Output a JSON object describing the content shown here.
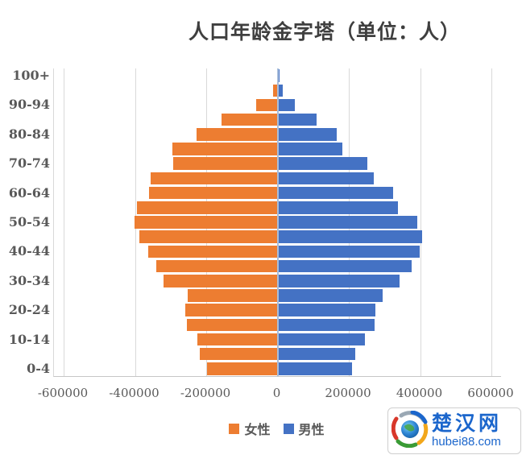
{
  "title": "人口年龄金字塔（单位：人）",
  "colors": {
    "female": "#ED7D31",
    "male": "#4472C4",
    "gridline": "#D9D9D9",
    "zero_axis": "#A9BEDB",
    "axis_text": "#595959",
    "title_text": "#3F3F3F",
    "logo_blue": "#1B66CC"
  },
  "chart_data": {
    "type": "bar",
    "subtype": "population-pyramid-horizontal",
    "title": "人口年龄金字塔（单位：人）",
    "categories_top_to_bottom": [
      "100+",
      "95-99",
      "90-94",
      "85-89",
      "80-84",
      "75-79",
      "70-74",
      "65-69",
      "60-64",
      "55-59",
      "50-54",
      "45-49",
      "40-44",
      "35-39",
      "30-34",
      "25-29",
      "20-24",
      "15-19",
      "10-14",
      "5-9",
      "0-4"
    ],
    "y_tick_labels_shown": [
      "100+",
      "90-94",
      "80-84",
      "70-74",
      "60-64",
      "50-54",
      "40-44",
      "30-34",
      "20-24",
      "10-14",
      "0-4"
    ],
    "series": [
      {
        "name": "女性",
        "side": "left",
        "color": "#ED7D31",
        "values": [
          -2000,
          -12000,
          -61000,
          -156000,
          -226000,
          -295000,
          -292000,
          -356000,
          -360000,
          -394000,
          -401000,
          -387000,
          -362000,
          -341000,
          -320000,
          -251000,
          -258000,
          -255000,
          -225000,
          -218000,
          -198000
        ]
      },
      {
        "name": "男性",
        "side": "right",
        "color": "#4472C4",
        "values": [
          5000,
          14000,
          48000,
          110000,
          165000,
          182000,
          253000,
          270000,
          324000,
          337000,
          391000,
          405000,
          399000,
          376000,
          342000,
          295000,
          275000,
          272000,
          245000,
          218000,
          209000
        ]
      }
    ],
    "xlim": [
      -600000,
      600000
    ],
    "x_ticks": [
      -600000,
      -400000,
      -200000,
      0,
      200000,
      400000,
      600000
    ],
    "x_tick_labels": [
      "-600000",
      "-400000",
      "-200000",
      "0",
      "200000",
      "400000",
      "600000"
    ],
    "grid": "vertical",
    "legend_position": "bottom"
  },
  "legend": {
    "female_label": "女性",
    "male_label": "男性"
  },
  "logo": {
    "site_name": "楚汉网",
    "site_url": "hubei88.com"
  }
}
